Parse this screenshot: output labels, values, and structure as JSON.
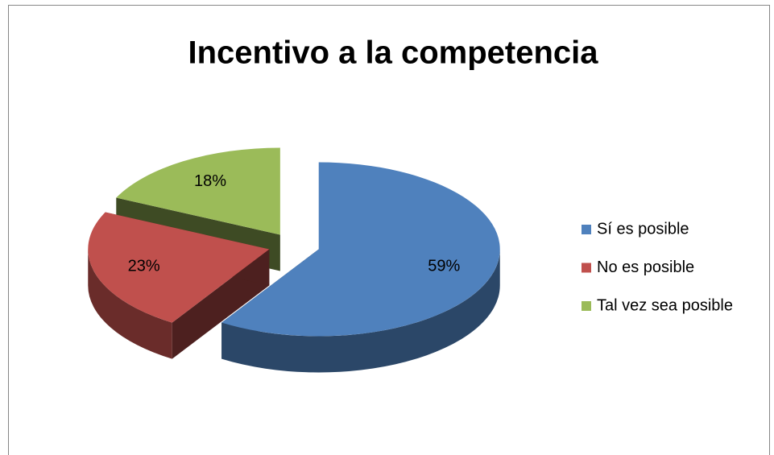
{
  "chart_data": {
    "type": "pie3d",
    "title": "Incentivo a la competencia",
    "categories": [
      "Sí es posible",
      "No es posible",
      "Tal vez sea posible"
    ],
    "values": [
      59,
      23,
      18
    ],
    "value_labels": [
      "59%",
      "23%",
      "18%"
    ],
    "colors": [
      "#4f81bd",
      "#c0504d",
      "#9bbb59"
    ],
    "legend": "right"
  }
}
